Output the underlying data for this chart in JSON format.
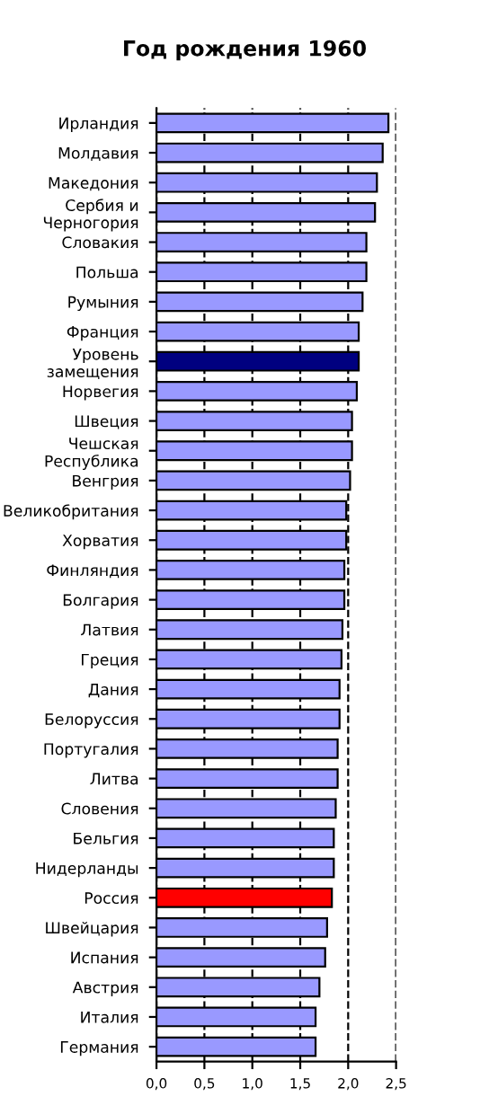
{
  "chart_data": {
    "type": "bar",
    "orientation": "horizontal",
    "title": "Год рождения 1960",
    "categories": [
      "Ирландия",
      "Молдавия",
      "Македония",
      "Сербия и\nЧерногория",
      "Словакия",
      "Польша",
      "Румыния",
      "Франция",
      "Уровень\nзамещения",
      "Норвегия",
      "Швеция",
      "Чешская\nРеспублика",
      "Венгрия",
      "Великобритания",
      "Хорватия",
      "Финляндия",
      "Болгария",
      "Латвия",
      "Греция",
      "Дания",
      "Белоруссия",
      "Португалия",
      "Литва",
      "Словения",
      "Бельгия",
      "Нидерланды",
      "Россия",
      "Швейцария",
      "Испания",
      "Австрия",
      "Италия",
      "Германия"
    ],
    "values": [
      2.42,
      2.36,
      2.3,
      2.28,
      2.19,
      2.19,
      2.15,
      2.11,
      2.11,
      2.09,
      2.04,
      2.04,
      2.02,
      1.98,
      1.98,
      1.96,
      1.96,
      1.94,
      1.93,
      1.91,
      1.91,
      1.89,
      1.89,
      1.87,
      1.85,
      1.85,
      1.83,
      1.78,
      1.76,
      1.7,
      1.66,
      1.66
    ],
    "colors": [
      "#9999ff",
      "#9999ff",
      "#9999ff",
      "#9999ff",
      "#9999ff",
      "#9999ff",
      "#9999ff",
      "#9999ff",
      "#000080",
      "#9999ff",
      "#9999ff",
      "#9999ff",
      "#9999ff",
      "#9999ff",
      "#9999ff",
      "#9999ff",
      "#9999ff",
      "#9999ff",
      "#9999ff",
      "#9999ff",
      "#9999ff",
      "#9999ff",
      "#9999ff",
      "#9999ff",
      "#9999ff",
      "#9999ff",
      "#ff0000",
      "#9999ff",
      "#9999ff",
      "#9999ff",
      "#9999ff",
      "#9999ff"
    ],
    "xlim": [
      0,
      2.5
    ],
    "xticks": [
      {
        "value": 0,
        "label": "0,0"
      },
      {
        "value": 0.5,
        "label": "0,5"
      },
      {
        "value": 1.0,
        "label": "1,0"
      },
      {
        "value": 1.5,
        "label": "1,5"
      },
      {
        "value": 2.0,
        "label": "2,0"
      },
      {
        "value": 2.5,
        "label": "2,5"
      }
    ],
    "grid": "x",
    "line_style": "dashed"
  }
}
